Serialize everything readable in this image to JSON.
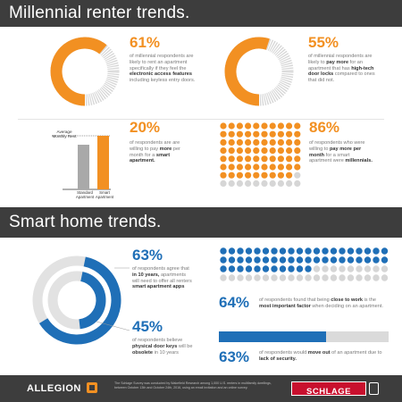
{
  "section1": {
    "title": "Millennial renter trends."
  },
  "section2": {
    "title": "Smart home trends."
  },
  "stats": {
    "s1": {
      "pct": "61%",
      "pre": "of millennial respondents are likely to rent an apartment specifically if ",
      "mid1": "they feel the ",
      "bold": "electronic access features",
      "post": " including keyless entry doors."
    },
    "s2": {
      "pct": "55%",
      "pre": "of millennial respondents are likely to ",
      "bold1": "pay more",
      "mid": " for an apartment that has ",
      "bold2": "high-tech door locks",
      "post": " compared to ones that did not."
    },
    "s3": {
      "pct": "20%",
      "pre": "of respondents are are willing to pay ",
      "bold1": "more",
      "mid": " per month for a ",
      "bold2": "smart apartment."
    },
    "s4": {
      "pct": "86%",
      "pre": "of respondents who were willing to ",
      "bold1": "pay more per month",
      "mid": " for a smart apartment were ",
      "bold2": "millennials."
    },
    "s5": {
      "pct": "63%",
      "pre": "of respondents agree that ",
      "bold1": "in 10 years,",
      "mid": " apartments will need to offer all renters ",
      "bold2": "smart apartment apps"
    },
    "s6": {
      "pct": "45%",
      "pre": "of respondents believe ",
      "bold1": "physical door keys",
      "mid": " will be ",
      "bold2": "obsolete",
      "post": " in 10 years"
    },
    "s7": {
      "pct": "64%",
      "pre": "of respondents found that being ",
      "bold1": "close to work",
      "mid": " is the ",
      "bold2": "most important factor",
      "post": " when deciding on an apartment."
    },
    "s8": {
      "pct": "63%",
      "pre": "of respondents would ",
      "bold1": "move out",
      "mid": " of an apartment due to ",
      "bold2": "lack of security."
    }
  },
  "bar_chart": {
    "ylabel_top": "Average",
    "ylabel_bottom": "Monthly Rent",
    "cat1_a": "Standard",
    "cat1_b": "Apartment",
    "cat2_a": "Smart",
    "cat2_b": "Apartment"
  },
  "footer": {
    "brand_left": "ALLEGION",
    "brand_right": "SCHLAGE",
    "note": "The Schlage Survey was conducted by Wakefield Research among 1,000 U.S. renters in multifamily dwellings, between October 13th and October 24th, 2016, using an email invitation and an online survey."
  },
  "colors": {
    "orange": "#f29022",
    "blue": "#1f6fb7",
    "grey": "#d6d6d6",
    "dark": "#3d3d3d"
  },
  "chart_data": [
    {
      "type": "pie",
      "name": "61% donut",
      "values": [
        61,
        39
      ]
    },
    {
      "type": "pie",
      "name": "55% donut",
      "values": [
        55,
        45
      ]
    },
    {
      "type": "bar",
      "categories": [
        "Standard Apartment",
        "Smart Apartment"
      ],
      "values": [
        100,
        120
      ],
      "ylabel": "Average Monthly Rent"
    },
    {
      "type": "table",
      "name": "86% dot matrix",
      "values": [
        86,
        14
      ]
    },
    {
      "type": "pie",
      "name": "63% / 45% concentric rings",
      "values": [
        63,
        45
      ]
    },
    {
      "type": "table",
      "name": "64% dot matrix",
      "values": [
        64,
        36
      ]
    },
    {
      "type": "bar",
      "name": "63% progress bar",
      "values": [
        63
      ]
    }
  ]
}
